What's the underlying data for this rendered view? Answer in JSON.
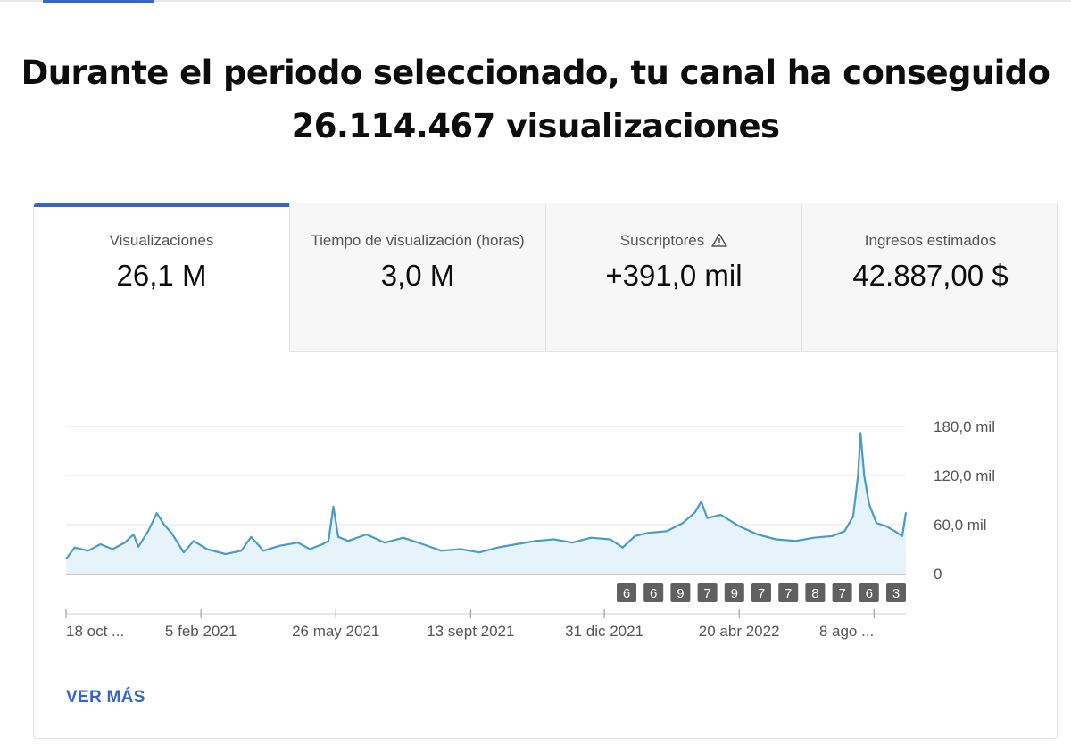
{
  "headline": {
    "line1": "Durante el periodo seleccionado, tu canal ha conseguido",
    "line2": "26.114.467 visualizaciones"
  },
  "tabs": [
    {
      "label": "Visualizaciones",
      "value": "26,1 M",
      "selected": true
    },
    {
      "label": "Tiempo de visualización (horas)",
      "value": "3,0 M",
      "selected": false
    },
    {
      "label": "Suscriptores",
      "value": "+391,0 mil",
      "selected": false,
      "icon": "warning-icon"
    },
    {
      "label": "Ingresos estimados",
      "value": "42.887,00 $",
      "selected": false
    }
  ],
  "colors": {
    "accent": "#3467c9",
    "line": "#4a9cc2",
    "fill": "#e6f3fa",
    "badge": "#606060"
  },
  "chart_data": {
    "type": "area",
    "title": "",
    "xlabel": "",
    "ylabel": "",
    "x_range": [
      "18 oct 2020",
      "3 sept 2022"
    ],
    "ylim": [
      0,
      180000
    ],
    "y_ticks": [
      {
        "value": 0,
        "label": "0"
      },
      {
        "value": 60000,
        "label": "60,0 mil"
      },
      {
        "value": 120000,
        "label": "120,0 mil"
      },
      {
        "value": 180000,
        "label": "180,0 mil"
      }
    ],
    "x_ticks": [
      {
        "date": "2020-10-18",
        "label": "18 oct ..."
      },
      {
        "date": "2021-02-05",
        "label": "5 feb 2021"
      },
      {
        "date": "2021-05-26",
        "label": "26 may 2021"
      },
      {
        "date": "2021-09-13",
        "label": "13 sept 2021"
      },
      {
        "date": "2021-12-31",
        "label": "31 dic 2021"
      },
      {
        "date": "2022-04-20",
        "label": "20 abr 2022"
      },
      {
        "date": "2022-08-08",
        "label": "8 ago ..."
      }
    ],
    "series": [
      {
        "values": [
          {
            "date": "2020-10-18",
            "value": 18000
          },
          {
            "date": "2020-10-25",
            "value": 32000
          },
          {
            "date": "2020-11-05",
            "value": 28000
          },
          {
            "date": "2020-11-15",
            "value": 36000
          },
          {
            "date": "2020-11-25",
            "value": 30000
          },
          {
            "date": "2020-12-05",
            "value": 38000
          },
          {
            "date": "2020-12-12",
            "value": 48000
          },
          {
            "date": "2020-12-16",
            "value": 33000
          },
          {
            "date": "2020-12-24",
            "value": 52000
          },
          {
            "date": "2020-12-31",
            "value": 74000
          },
          {
            "date": "2021-01-06",
            "value": 60000
          },
          {
            "date": "2021-01-12",
            "value": 50000
          },
          {
            "date": "2021-01-22",
            "value": 26000
          },
          {
            "date": "2021-01-30",
            "value": 40000
          },
          {
            "date": "2021-02-10",
            "value": 30000
          },
          {
            "date": "2021-02-25",
            "value": 24000
          },
          {
            "date": "2021-03-10",
            "value": 28000
          },
          {
            "date": "2021-03-18",
            "value": 45000
          },
          {
            "date": "2021-03-28",
            "value": 28000
          },
          {
            "date": "2021-04-10",
            "value": 34000
          },
          {
            "date": "2021-04-25",
            "value": 38000
          },
          {
            "date": "2021-05-05",
            "value": 30000
          },
          {
            "date": "2021-05-15",
            "value": 36000
          },
          {
            "date": "2021-05-20",
            "value": 40000
          },
          {
            "date": "2021-05-24",
            "value": 82000
          },
          {
            "date": "2021-05-28",
            "value": 45000
          },
          {
            "date": "2021-06-05",
            "value": 40000
          },
          {
            "date": "2021-06-20",
            "value": 48000
          },
          {
            "date": "2021-07-05",
            "value": 38000
          },
          {
            "date": "2021-07-20",
            "value": 44000
          },
          {
            "date": "2021-08-05",
            "value": 36000
          },
          {
            "date": "2021-08-20",
            "value": 28000
          },
          {
            "date": "2021-09-05",
            "value": 30000
          },
          {
            "date": "2021-09-20",
            "value": 26000
          },
          {
            "date": "2021-10-05",
            "value": 32000
          },
          {
            "date": "2021-10-20",
            "value": 36000
          },
          {
            "date": "2021-11-05",
            "value": 40000
          },
          {
            "date": "2021-11-20",
            "value": 42000
          },
          {
            "date": "2021-12-05",
            "value": 38000
          },
          {
            "date": "2021-12-20",
            "value": 44000
          },
          {
            "date": "2022-01-05",
            "value": 42000
          },
          {
            "date": "2022-01-15",
            "value": 32000
          },
          {
            "date": "2022-01-25",
            "value": 46000
          },
          {
            "date": "2022-02-05",
            "value": 50000
          },
          {
            "date": "2022-02-20",
            "value": 52000
          },
          {
            "date": "2022-03-05",
            "value": 62000
          },
          {
            "date": "2022-03-15",
            "value": 75000
          },
          {
            "date": "2022-03-20",
            "value": 88000
          },
          {
            "date": "2022-03-25",
            "value": 68000
          },
          {
            "date": "2022-04-05",
            "value": 72000
          },
          {
            "date": "2022-04-20",
            "value": 58000
          },
          {
            "date": "2022-05-05",
            "value": 48000
          },
          {
            "date": "2022-05-20",
            "value": 42000
          },
          {
            "date": "2022-06-05",
            "value": 40000
          },
          {
            "date": "2022-06-20",
            "value": 44000
          },
          {
            "date": "2022-07-05",
            "value": 46000
          },
          {
            "date": "2022-07-15",
            "value": 52000
          },
          {
            "date": "2022-07-22",
            "value": 70000
          },
          {
            "date": "2022-07-26",
            "value": 120000
          },
          {
            "date": "2022-07-28",
            "value": 172000
          },
          {
            "date": "2022-07-31",
            "value": 120000
          },
          {
            "date": "2022-08-04",
            "value": 85000
          },
          {
            "date": "2022-08-10",
            "value": 62000
          },
          {
            "date": "2022-08-18",
            "value": 58000
          },
          {
            "date": "2022-08-25",
            "value": 52000
          },
          {
            "date": "2022-08-31",
            "value": 46000
          },
          {
            "date": "2022-09-03",
            "value": 75000
          }
        ]
      }
    ],
    "badges": [
      "6",
      "6",
      "9",
      "7",
      "9",
      "7",
      "7",
      "8",
      "7",
      "6",
      "3"
    ]
  },
  "footer": {
    "more_label": "VER MÁS"
  }
}
